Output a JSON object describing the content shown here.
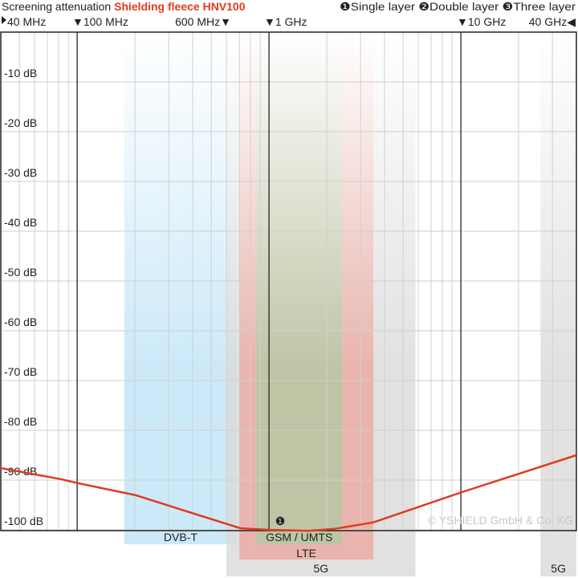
{
  "chart_data": {
    "type": "line",
    "title_prefix": "Screening attenuation",
    "title_product": "Shielding fleece HNV100",
    "legend": [
      {
        "marker": "❶",
        "label": "Single layer"
      },
      {
        "marker": "❷",
        "label": "Double layer"
      },
      {
        "marker": "❸",
        "label": "Three layer"
      }
    ],
    "x_scale": "log",
    "x_unit": "Hz",
    "xlim": [
      40000000,
      40000000000
    ],
    "x_tick_labels": [
      {
        "f": 40000000,
        "label": "40 MHz",
        "marker": "◀ right"
      },
      {
        "f": 100000000,
        "label": "100 MHz",
        "marker": "▼"
      },
      {
        "f": 600000000,
        "label": "600 MHz",
        "marker": "▼"
      },
      {
        "f": 1000000000,
        "label": "1 GHz",
        "marker": "▼"
      },
      {
        "f": 10000000000,
        "label": "10 GHz",
        "marker": "▼"
      },
      {
        "f": 40000000000,
        "label": "40 GHz",
        "marker": "◀"
      }
    ],
    "ylim": [
      -105,
      0
    ],
    "y_ticks": [
      -10,
      -20,
      -30,
      -40,
      -50,
      -60,
      -70,
      -80,
      -90,
      -100
    ],
    "y_tick_suffix": " dB",
    "grid": true,
    "bands": [
      {
        "label": "DVB-T",
        "from": 176000000,
        "to": 680000000,
        "color": "#bfe3f7"
      },
      {
        "label": "5G",
        "from": 600000000,
        "to": 5800000000,
        "color": "#d9d9d9"
      },
      {
        "label": "LTE",
        "from": 700000000,
        "to": 3500000000,
        "color": "#eba9a0"
      },
      {
        "label": "GSM / UMTS",
        "from": 860000000,
        "to": 2400000000,
        "color": "#b9c7a4"
      },
      {
        "label": "5G",
        "from": 26000000000,
        "to": 40000000000,
        "color": "#d9d9d9"
      }
    ],
    "series": [
      {
        "marker_label": "❶",
        "color": "#e03a1e",
        "x": [
          40000000,
          82000000,
          100000000,
          200000000,
          710000000,
          1000000000,
          1600000000,
          2200000000,
          3500000000,
          10000000000,
          40000000000
        ],
        "y": [
          -87.6,
          -89.8,
          -90.6,
          -93,
          -99.7,
          -100,
          -100.2,
          -99.8,
          -98.5,
          -92.5,
          -85
        ]
      }
    ],
    "copyright": "© YSHIELD GmbH & Co. KG"
  }
}
